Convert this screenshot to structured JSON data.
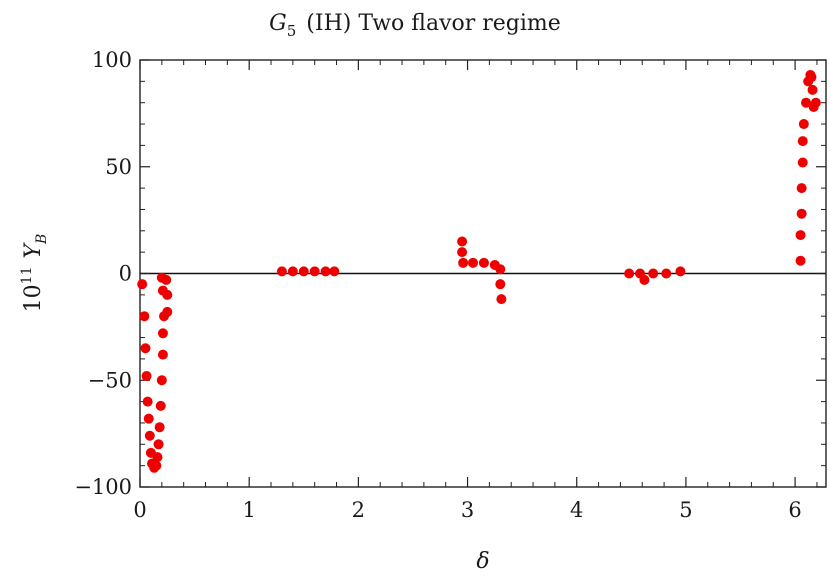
{
  "chart_data": {
    "type": "scatter",
    "title": "G",
    "title_subscript": "5",
    "title_rest": "(IH) Two flavor regime",
    "xlabel": "δ",
    "ylabel_prefix": "10",
    "ylabel_exponent": "11",
    "ylabel_symbol": "Y",
    "ylabel_subscript": "B",
    "xlim": [
      0,
      6.283
    ],
    "ylim": [
      -100,
      100
    ],
    "x_ticks": [
      0,
      1,
      2,
      3,
      4,
      5,
      6
    ],
    "y_ticks": [
      -100,
      -50,
      0,
      50,
      100
    ],
    "x_tick_labels": [
      "0",
      "1",
      "2",
      "3",
      "4",
      "5",
      "6"
    ],
    "y_tick_labels": [
      "−100",
      "−50",
      "0",
      "50",
      "100"
    ],
    "zero_line": true,
    "grid": false,
    "point_color": "#ee0000",
    "series": [
      {
        "values": [
          [
            0.02,
            -5
          ],
          [
            0.04,
            -20
          ],
          [
            0.05,
            -35
          ],
          [
            0.06,
            -48
          ],
          [
            0.07,
            -60
          ],
          [
            0.08,
            -68
          ],
          [
            0.09,
            -76
          ],
          [
            0.1,
            -84
          ],
          [
            0.11,
            -89
          ],
          [
            0.13,
            -91
          ],
          [
            0.15,
            -90
          ],
          [
            0.16,
            -86
          ],
          [
            0.17,
            -80
          ],
          [
            0.18,
            -72
          ],
          [
            0.19,
            -62
          ],
          [
            0.2,
            -50
          ],
          [
            0.21,
            -38
          ],
          [
            0.21,
            -28
          ],
          [
            0.22,
            -20
          ],
          [
            0.21,
            -8
          ],
          [
            0.2,
            -2
          ],
          [
            0.24,
            -3
          ],
          [
            0.25,
            -10
          ],
          [
            0.25,
            -18
          ],
          [
            1.3,
            1
          ],
          [
            1.4,
            1
          ],
          [
            1.5,
            1
          ],
          [
            1.6,
            1
          ],
          [
            1.7,
            1
          ],
          [
            1.78,
            1
          ],
          [
            2.95,
            15
          ],
          [
            2.95,
            10
          ],
          [
            2.96,
            5
          ],
          [
            3.05,
            5
          ],
          [
            3.15,
            5
          ],
          [
            3.25,
            4
          ],
          [
            3.3,
            2
          ],
          [
            3.3,
            -5
          ],
          [
            3.31,
            -12
          ],
          [
            4.48,
            0
          ],
          [
            4.58,
            0
          ],
          [
            4.62,
            -3
          ],
          [
            4.7,
            0
          ],
          [
            4.82,
            0
          ],
          [
            4.95,
            1
          ],
          [
            6.05,
            6
          ],
          [
            6.05,
            18
          ],
          [
            6.06,
            28
          ],
          [
            6.06,
            40
          ],
          [
            6.07,
            52
          ],
          [
            6.07,
            62
          ],
          [
            6.08,
            70
          ],
          [
            6.1,
            80
          ],
          [
            6.12,
            90
          ],
          [
            6.14,
            93
          ],
          [
            6.15,
            92
          ],
          [
            6.16,
            86
          ],
          [
            6.17,
            78
          ],
          [
            6.19,
            80
          ]
        ]
      }
    ]
  }
}
